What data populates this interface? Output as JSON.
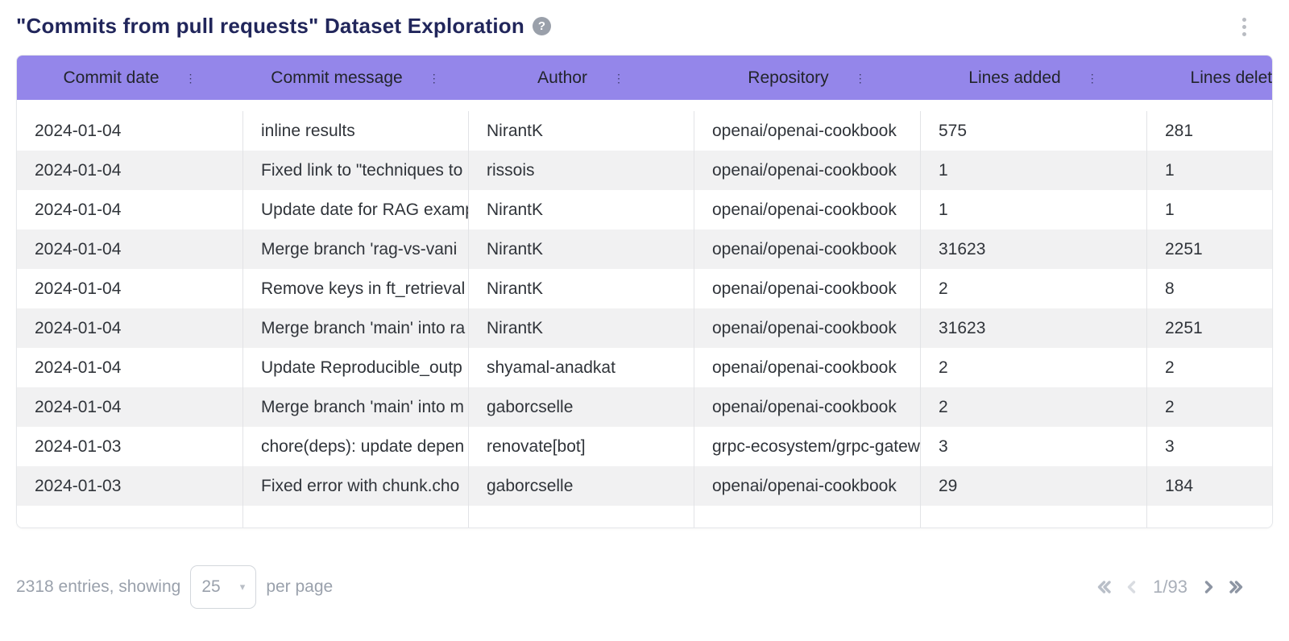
{
  "page": {
    "title": "\"Commits from pull requests\" Dataset Exploration",
    "help_glyph": "?"
  },
  "theme": {
    "header_bg": "#9486ea",
    "stripe": "#f1f1f2",
    "title_color": "#21265b",
    "footer_gray": "#9aa1ac"
  },
  "table": {
    "columns": [
      "Commit date",
      "Commit message",
      "Author",
      "Repository",
      "Lines added",
      "Lines deleted"
    ],
    "column_menu_glyph": "⋮",
    "rows": [
      [
        "2024-01-04",
        "inline results",
        "NirantK",
        "openai/openai-cookbook",
        "575",
        "281"
      ],
      [
        "2024-01-04",
        "Fixed link to \"techniques to",
        "rissois",
        "openai/openai-cookbook",
        "1",
        "1"
      ],
      [
        "2024-01-04",
        "Update date for RAG examp",
        "NirantK",
        "openai/openai-cookbook",
        "1",
        "1"
      ],
      [
        "2024-01-04",
        "Merge branch 'rag-vs-vani",
        "NirantK",
        "openai/openai-cookbook",
        "31623",
        "2251"
      ],
      [
        "2024-01-04",
        "Remove keys in ft_retrieval",
        "NirantK",
        "openai/openai-cookbook",
        "2",
        "8"
      ],
      [
        "2024-01-04",
        "Merge branch 'main' into ra",
        "NirantK",
        "openai/openai-cookbook",
        "31623",
        "2251"
      ],
      [
        "2024-01-04",
        "Update Reproducible_outp",
        "shyamal-anadkat",
        "openai/openai-cookbook",
        "2",
        "2"
      ],
      [
        "2024-01-04",
        "Merge branch 'main' into m",
        "gaborcselle",
        "openai/openai-cookbook",
        "2",
        "2"
      ],
      [
        "2024-01-03",
        "chore(deps): update depen",
        "renovate[bot]",
        "grpc-ecosystem/grpc-gatew",
        "3",
        "3"
      ],
      [
        "2024-01-03",
        "Fixed error with chunk.cho",
        "gaborcselle",
        "openai/openai-cookbook",
        "29",
        "184"
      ]
    ]
  },
  "footer": {
    "entries_text": "2318 entries, showing",
    "page_size": "25",
    "per_page_text": "per page",
    "page_indicator": "1/93"
  }
}
